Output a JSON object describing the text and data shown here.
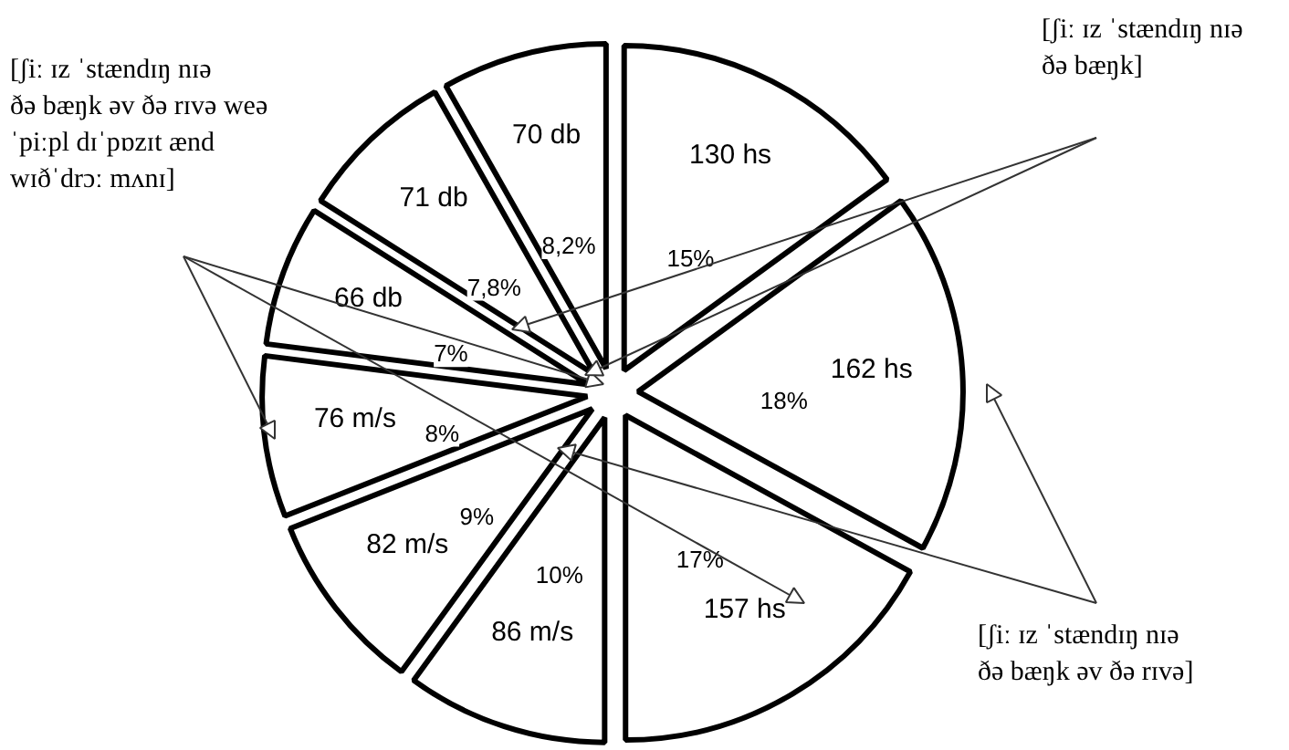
{
  "chart_data": {
    "type": "pie",
    "categories": [
      "130 hs",
      "162 hs",
      "157 hs",
      "86 m/s",
      "82 m/s",
      "76 m/s",
      "66 db",
      "71 db",
      "70 db"
    ],
    "values": [
      15,
      18,
      17,
      10,
      9,
      8,
      7,
      7.8,
      8.2
    ],
    "value_labels": [
      "15%",
      "18%",
      "17%",
      "10%",
      "9%",
      "8%",
      "7%",
      "7,8%",
      "8,2%"
    ],
    "colors": [
      "#ffffff",
      "#ffffff",
      "#ffffff",
      "#ffffff",
      "#ffffff",
      "#ffffff",
      "#ffffff",
      "#ffffff",
      "#ffffff"
    ],
    "annotations": [
      "[ʃiː ɪz ˈstændɪŋ nɪə ðə bæŋk əv ðə rɪvə weə ˈpiːpl dɪˈpɒzɪt ænd wɪðˈdrɔː mʌnɪ]",
      "[ʃiː ɪz ˈstændɪŋ nɪə ðə bæŋk]",
      "[ʃiː ɪz ˈstændɪŋ nɪə ðə bæŋk əv ðə rɪvə]"
    ]
  }
}
